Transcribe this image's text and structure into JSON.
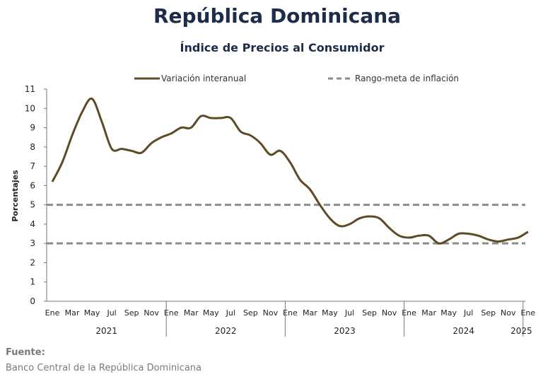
{
  "title": "República Dominicana",
  "subtitle": "Índice de Precios al Consumidor",
  "source_label": "Fuente:",
  "source_text": "Banco Central de la República Dominicana",
  "chart_data": {
    "type": "line",
    "ylabel": "Porcentajes",
    "ylim": [
      0,
      11
    ],
    "yticks": [
      0,
      1,
      2,
      3,
      4,
      5,
      6,
      7,
      8,
      9,
      10,
      11
    ],
    "month_labels": [
      "Ene",
      "Mar",
      "May",
      "Jul",
      "Sep",
      "Nov",
      "Ene",
      "Mar",
      "May",
      "Jul",
      "Sep",
      "Nov",
      "Ene",
      "Mar",
      "May",
      "Jul",
      "Sep",
      "Nov",
      "Ene",
      "Mar",
      "May",
      "Jul",
      "Sep",
      "Nov",
      "Ene"
    ],
    "month_label_positions": [
      0,
      2,
      4,
      6,
      8,
      10,
      12,
      14,
      16,
      18,
      20,
      22,
      24,
      26,
      28,
      30,
      32,
      34,
      36,
      38,
      40,
      42,
      44,
      46,
      48
    ],
    "years": [
      {
        "label": "2021",
        "start": 0,
        "months": 12
      },
      {
        "label": "2022",
        "start": 12,
        "months": 12
      },
      {
        "label": "2023",
        "start": 24,
        "months": 12
      },
      {
        "label": "2024",
        "start": 36,
        "months": 12
      },
      {
        "label": "2025",
        "start": 48,
        "months": 1
      }
    ],
    "x_count": 49,
    "series": [
      {
        "name": "Variación interanual",
        "color": "#5e4a25",
        "style": "solid",
        "values": [
          6.2,
          7.2,
          8.6,
          9.8,
          10.5,
          9.3,
          7.9,
          7.9,
          7.8,
          7.7,
          8.2,
          8.5,
          8.7,
          9.0,
          9.0,
          9.6,
          9.5,
          9.5,
          9.5,
          8.8,
          8.6,
          8.2,
          7.6,
          7.8,
          7.2,
          6.3,
          5.8,
          5.0,
          4.3,
          3.9,
          4.0,
          4.3,
          4.4,
          4.3,
          3.8,
          3.4,
          3.3,
          3.4,
          3.4,
          3.0,
          3.2,
          3.5,
          3.5,
          3.4,
          3.2,
          3.1,
          3.2,
          3.3,
          3.6
        ]
      },
      {
        "name": "Rango-meta de inflación",
        "color": "#8c8c8c",
        "style": "dashed",
        "values_upper": 5,
        "values_lower": 3
      }
    ],
    "legend_position": "top"
  }
}
